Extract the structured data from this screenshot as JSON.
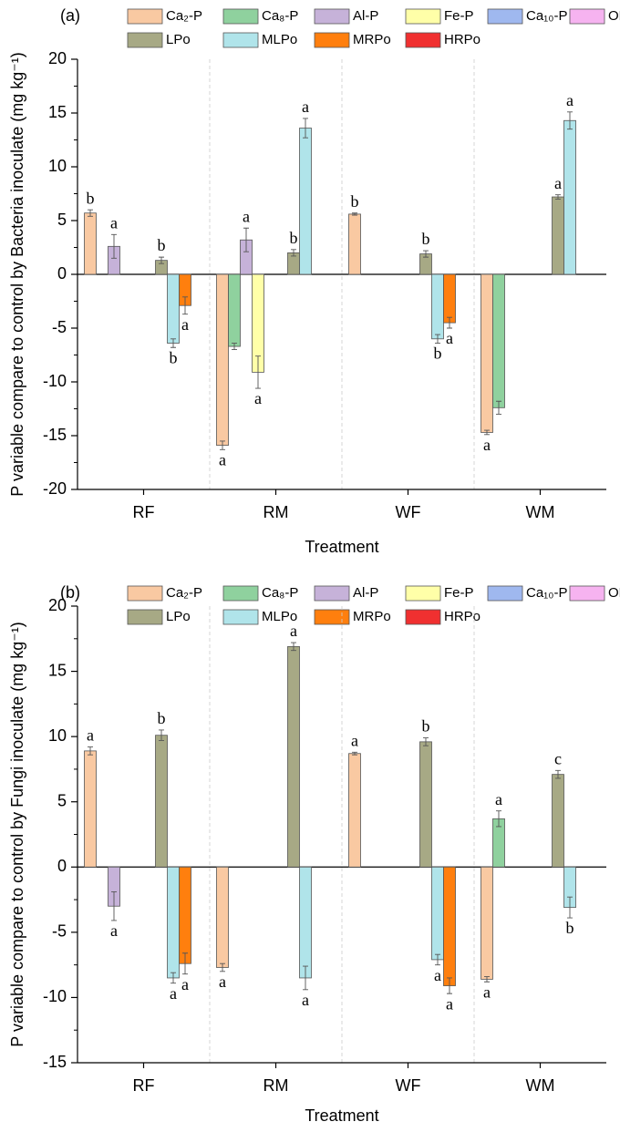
{
  "chart_data": [
    {
      "type": "bar",
      "title": "(a)",
      "y_label": "P variable compare to control by Bacteria inoculate (mg kg⁻¹)",
      "x_label": "Treatment",
      "categories": [
        "RF",
        "RM",
        "WF",
        "WM"
      ],
      "ylim": [
        -20,
        20
      ],
      "yticks": [
        -20,
        -15,
        -10,
        -5,
        0,
        5,
        10,
        15,
        20
      ],
      "series": [
        {
          "name": "Ca₂-P",
          "color": "#f9c9a2",
          "values": [
            5.7,
            -15.9,
            5.6,
            -14.7
          ],
          "errors": [
            0.3,
            0.4,
            0.1,
            0.2
          ],
          "annotations": [
            "b",
            "a",
            "b",
            "a"
          ]
        },
        {
          "name": "Ca₈-P",
          "color": "#8fd19e",
          "values": [
            null,
            -6.7,
            null,
            -12.4
          ],
          "errors": [
            null,
            0.3,
            null,
            0.6
          ],
          "annotations": [
            null,
            null,
            null,
            null
          ]
        },
        {
          "name": "Al-P",
          "color": "#c6b2d9",
          "values": [
            2.6,
            3.2,
            null,
            null
          ],
          "errors": [
            1.1,
            1.1,
            null,
            null
          ],
          "annotations": [
            "a",
            "a",
            null,
            null
          ]
        },
        {
          "name": "Fe-P",
          "color": "#ffffa8",
          "values": [
            null,
            -9.1,
            null,
            null
          ],
          "errors": [
            null,
            1.5,
            null,
            null
          ],
          "annotations": [
            null,
            "a",
            null,
            null
          ]
        },
        {
          "name": "Ca₁₀-P",
          "color": "#9fb8ef",
          "values": [
            null,
            null,
            null,
            null
          ],
          "errors": [
            null,
            null,
            null,
            null
          ],
          "annotations": [
            null,
            null,
            null,
            null
          ]
        },
        {
          "name": "OP",
          "color": "#f6b3f0",
          "values": [
            null,
            null,
            null,
            null
          ],
          "errors": [
            null,
            null,
            null,
            null
          ],
          "annotations": [
            null,
            null,
            null,
            null
          ]
        },
        {
          "name": "LPo",
          "color": "#a7a985",
          "values": [
            1.3,
            2.0,
            1.9,
            7.2
          ],
          "errors": [
            0.3,
            0.3,
            0.3,
            0.2
          ],
          "annotations": [
            "b",
            "b",
            "b",
            "a"
          ]
        },
        {
          "name": "MLPo",
          "color": "#b0e4ea",
          "values": [
            -6.4,
            13.6,
            -6.0,
            14.3
          ],
          "errors": [
            0.4,
            0.9,
            0.4,
            0.8
          ],
          "annotations": [
            "b",
            "a",
            "b",
            "a"
          ]
        },
        {
          "name": "MRPo",
          "color": "#ff7f0e",
          "values": [
            -2.9,
            null,
            -4.5,
            null
          ],
          "errors": [
            0.8,
            null,
            0.5,
            null
          ],
          "annotations": [
            "a",
            null,
            "a",
            null
          ]
        },
        {
          "name": "HRPo",
          "color": "#f03030",
          "values": [
            null,
            null,
            null,
            null
          ],
          "errors": [
            null,
            null,
            null,
            null
          ],
          "annotations": [
            null,
            null,
            null,
            null
          ]
        }
      ]
    },
    {
      "type": "bar",
      "title": "(b)",
      "y_label": "P variable compare to control by Fungi inoculate (mg kg⁻¹)",
      "x_label": "Treatment",
      "categories": [
        "RF",
        "RM",
        "WF",
        "WM"
      ],
      "ylim": [
        -15,
        20
      ],
      "yticks": [
        -15,
        -10,
        -5,
        0,
        5,
        10,
        15,
        20
      ],
      "series": [
        {
          "name": "Ca₂-P",
          "color": "#f9c9a2",
          "values": [
            8.9,
            -7.7,
            8.7,
            -8.6
          ],
          "errors": [
            0.3,
            0.3,
            0.1,
            0.2
          ],
          "annotations": [
            "a",
            "a",
            "a",
            "a"
          ]
        },
        {
          "name": "Ca₈-P",
          "color": "#8fd19e",
          "values": [
            null,
            null,
            null,
            3.7
          ],
          "errors": [
            null,
            null,
            null,
            0.6
          ],
          "annotations": [
            null,
            null,
            null,
            "a"
          ]
        },
        {
          "name": "Al-P",
          "color": "#c6b2d9",
          "values": [
            -3.0,
            null,
            null,
            null
          ],
          "errors": [
            1.1,
            null,
            null,
            null
          ],
          "annotations": [
            "a",
            null,
            null,
            null
          ]
        },
        {
          "name": "Fe-P",
          "color": "#ffffa8",
          "values": [
            null,
            null,
            null,
            null
          ],
          "errors": [
            null,
            null,
            null,
            null
          ],
          "annotations": [
            null,
            null,
            null,
            null
          ]
        },
        {
          "name": "Ca₁₀-P",
          "color": "#9fb8ef",
          "values": [
            null,
            null,
            null,
            null
          ],
          "errors": [
            null,
            null,
            null,
            null
          ],
          "annotations": [
            null,
            null,
            null,
            null
          ]
        },
        {
          "name": "OP",
          "color": "#f6b3f0",
          "values": [
            null,
            null,
            null,
            null
          ],
          "errors": [
            null,
            null,
            null,
            null
          ],
          "annotations": [
            null,
            null,
            null,
            null
          ]
        },
        {
          "name": "LPo",
          "color": "#a7a985",
          "values": [
            10.1,
            16.9,
            9.6,
            7.1
          ],
          "errors": [
            0.4,
            0.3,
            0.3,
            0.3
          ],
          "annotations": [
            "b",
            "a",
            "b",
            "c"
          ]
        },
        {
          "name": "MLPo",
          "color": "#b0e4ea",
          "values": [
            -8.5,
            -8.5,
            -7.1,
            -3.1
          ],
          "errors": [
            0.4,
            0.9,
            0.4,
            0.8
          ],
          "annotations": [
            "a",
            "a",
            "a",
            "b"
          ]
        },
        {
          "name": "MRPo",
          "color": "#ff7f0e",
          "values": [
            -7.4,
            null,
            -9.1,
            null
          ],
          "errors": [
            0.8,
            null,
            0.6,
            null
          ],
          "annotations": [
            "a",
            null,
            "a",
            null
          ]
        },
        {
          "name": "HRPo",
          "color": "#f03030",
          "values": [
            null,
            null,
            null,
            null
          ],
          "errors": [
            null,
            null,
            null,
            null
          ],
          "annotations": [
            null,
            null,
            null,
            null
          ]
        }
      ]
    }
  ]
}
